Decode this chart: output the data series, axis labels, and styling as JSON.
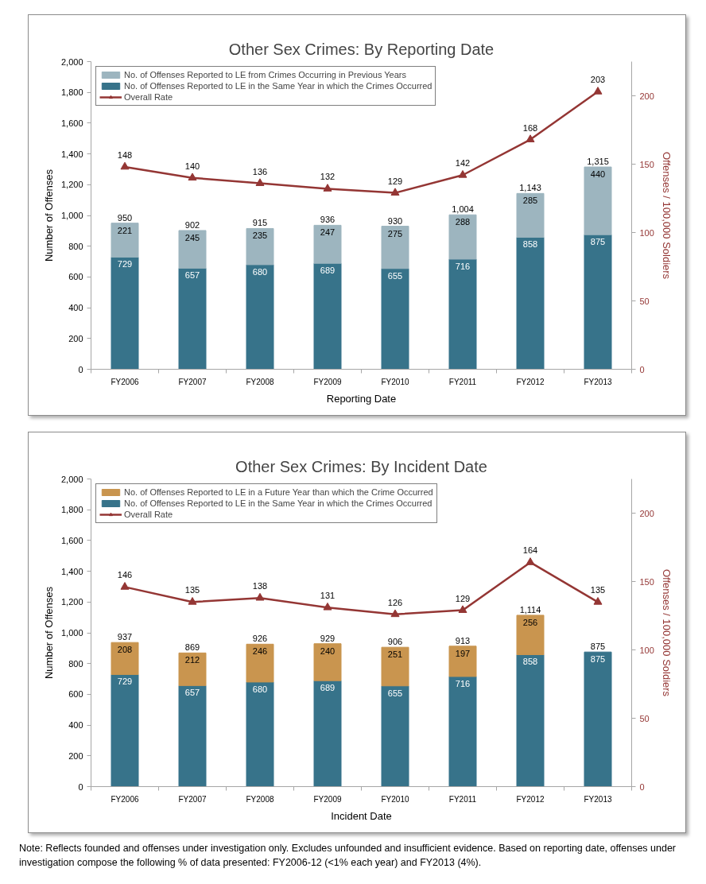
{
  "chart_data": [
    {
      "type": "bar",
      "stacked": true,
      "title": "Other Sex Crimes: By Reporting Date",
      "xlabel": "Reporting Date",
      "ylabel": "Number of Offenses",
      "y2label": "Offenses / 100,000 Soldiers",
      "categories": [
        "FY2006",
        "FY2007",
        "FY2008",
        "FY2009",
        "FY2010",
        "FY2011",
        "FY2012",
        "FY2013"
      ],
      "series": [
        {
          "name": "No. of Offenses Reported to LE in the Same Year in which the Crimes Occurred",
          "color": "#37738a",
          "values": [
            729,
            657,
            680,
            689,
            655,
            716,
            858,
            875
          ]
        },
        {
          "name": "No. of Offenses Reported to LE from Crimes Occurring in Previous Years",
          "color": "#9db5bf",
          "values": [
            221,
            245,
            235,
            247,
            275,
            288,
            285,
            440
          ]
        },
        {
          "name": "Overall Rate",
          "type": "line",
          "axis": "y2",
          "color": "#943634",
          "marker": "triangle",
          "values": [
            148,
            140,
            136,
            132,
            129,
            142,
            168,
            203
          ]
        }
      ],
      "totals": [
        "950",
        "902",
        "915",
        "936",
        "930",
        "1,004",
        "1,143",
        "1,315"
      ],
      "data_labels": true,
      "ylim": [
        0,
        2000
      ],
      "yticks": [
        0,
        200,
        400,
        600,
        800,
        {
          "value": 1000,
          "label": "1,000"
        },
        {
          "value": 1200,
          "label": "1,200"
        },
        {
          "value": 1400,
          "label": "1,400"
        },
        {
          "value": 1600,
          "label": "1,600"
        },
        {
          "value": 1800,
          "label": "1,800"
        },
        {
          "value": 2000,
          "label": "2,000"
        }
      ],
      "y2lim": [
        0,
        225
      ],
      "y2ticks": [
        0,
        50,
        100,
        150,
        200
      ],
      "grid": false,
      "legend": "top left"
    },
    {
      "type": "bar",
      "stacked": true,
      "title": "Other Sex Crimes: By Incident Date",
      "xlabel": "Incident Date",
      "ylabel": "Number of Offenses",
      "y2label": "Offenses / 100,000 Soldiers",
      "categories": [
        "FY2006",
        "FY2007",
        "FY2008",
        "FY2009",
        "FY2010",
        "FY2011",
        "FY2012",
        "FY2013"
      ],
      "series": [
        {
          "name": "No. of Offenses Reported to LE in the Same Year in which the Crimes Occurred",
          "color": "#37738a",
          "values": [
            729,
            657,
            680,
            689,
            655,
            716,
            858,
            875
          ]
        },
        {
          "name": "No. of Offenses Reported to LE in a Future Year than which the Crime Occurred",
          "color": "#c9954f",
          "values": [
            208,
            212,
            246,
            240,
            251,
            197,
            256,
            null
          ]
        },
        {
          "name": "Overall Rate",
          "type": "line",
          "axis": "y2",
          "color": "#943634",
          "marker": "triangle",
          "values": [
            146,
            135,
            138,
            131,
            126,
            129,
            164,
            135
          ]
        }
      ],
      "totals": [
        "937",
        "869",
        "926",
        "929",
        "906",
        "913",
        "1,114",
        "875"
      ],
      "data_labels": true,
      "ylim": [
        0,
        2000
      ],
      "yticks": [
        0,
        200,
        400,
        600,
        800,
        {
          "value": 1000,
          "label": "1,000"
        },
        {
          "value": 1200,
          "label": "1,200"
        },
        {
          "value": 1400,
          "label": "1,400"
        },
        {
          "value": 1600,
          "label": "1,600"
        },
        {
          "value": 1800,
          "label": "1,800"
        },
        {
          "value": 2000,
          "label": "2,000"
        }
      ],
      "y2lim": [
        0,
        225
      ],
      "y2ticks": [
        0,
        50,
        100,
        150,
        200
      ],
      "grid": false,
      "legend": "top left",
      "annotations": [
        "Note: Reflects founded and offenses under investigation only. Excludes unfounded and insufficient evidence. Based on reporting date, offenses under investigation compose the following % of data presented: FY2006-12 (<1% each year) and FY2013 (4%)."
      ]
    }
  ]
}
